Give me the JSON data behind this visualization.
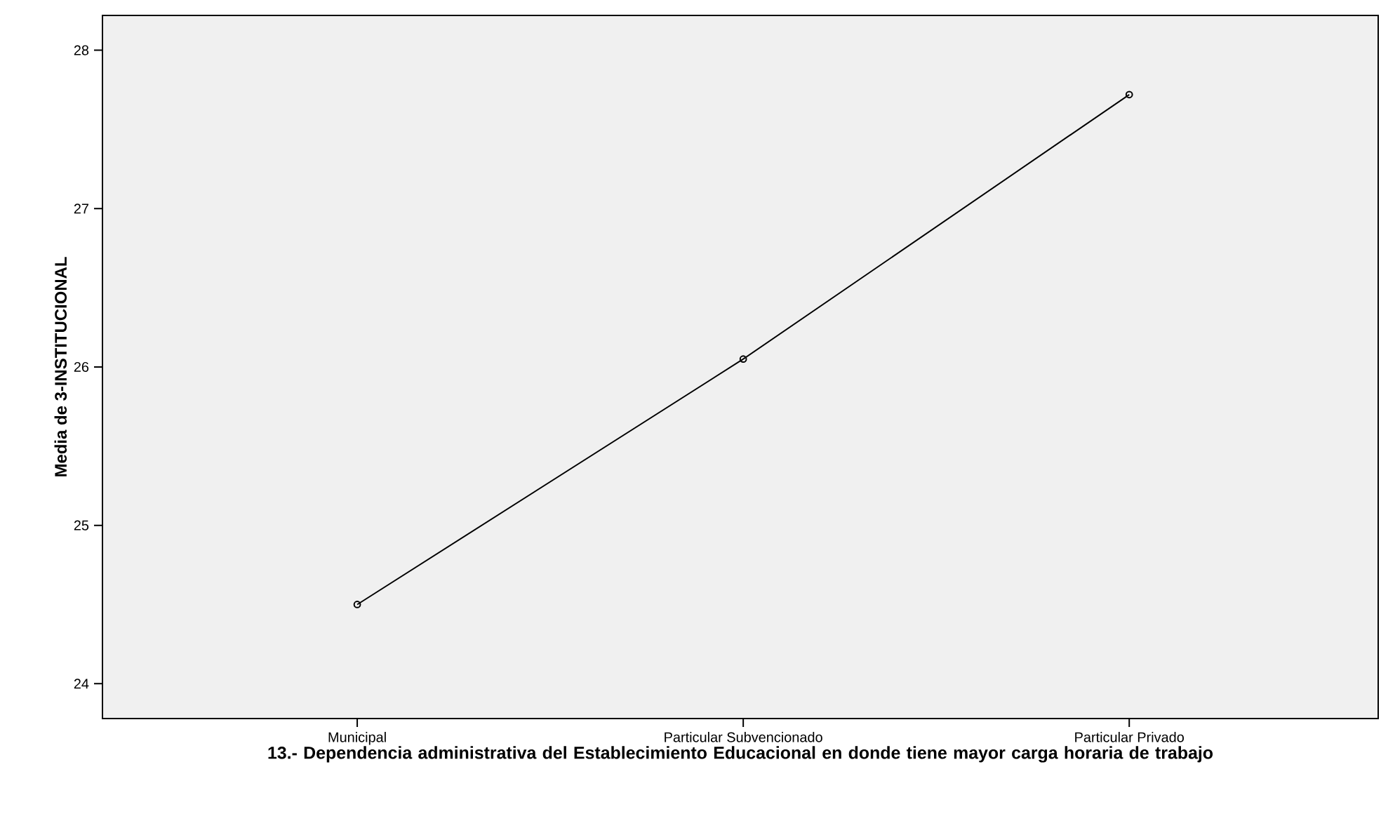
{
  "chart_data": {
    "type": "line",
    "xlabel": "13.- Dependencia administrativa del Establecimiento Educacional en donde tiene mayor carga horaria de trabajo",
    "ylabel": "Media de 3-INSTITUCIONAL",
    "categories": [
      "Municipal",
      "Particular Subvencionado",
      "Particular Privado"
    ],
    "series": [
      {
        "color": "#000000",
        "values": [
          24.5,
          26.05,
          27.72
        ]
      }
    ],
    "ylim": [
      23.78,
      28.22
    ],
    "yticks": [
      24,
      25,
      26,
      27,
      28
    ],
    "marker": "circle",
    "line_style": "solid"
  }
}
